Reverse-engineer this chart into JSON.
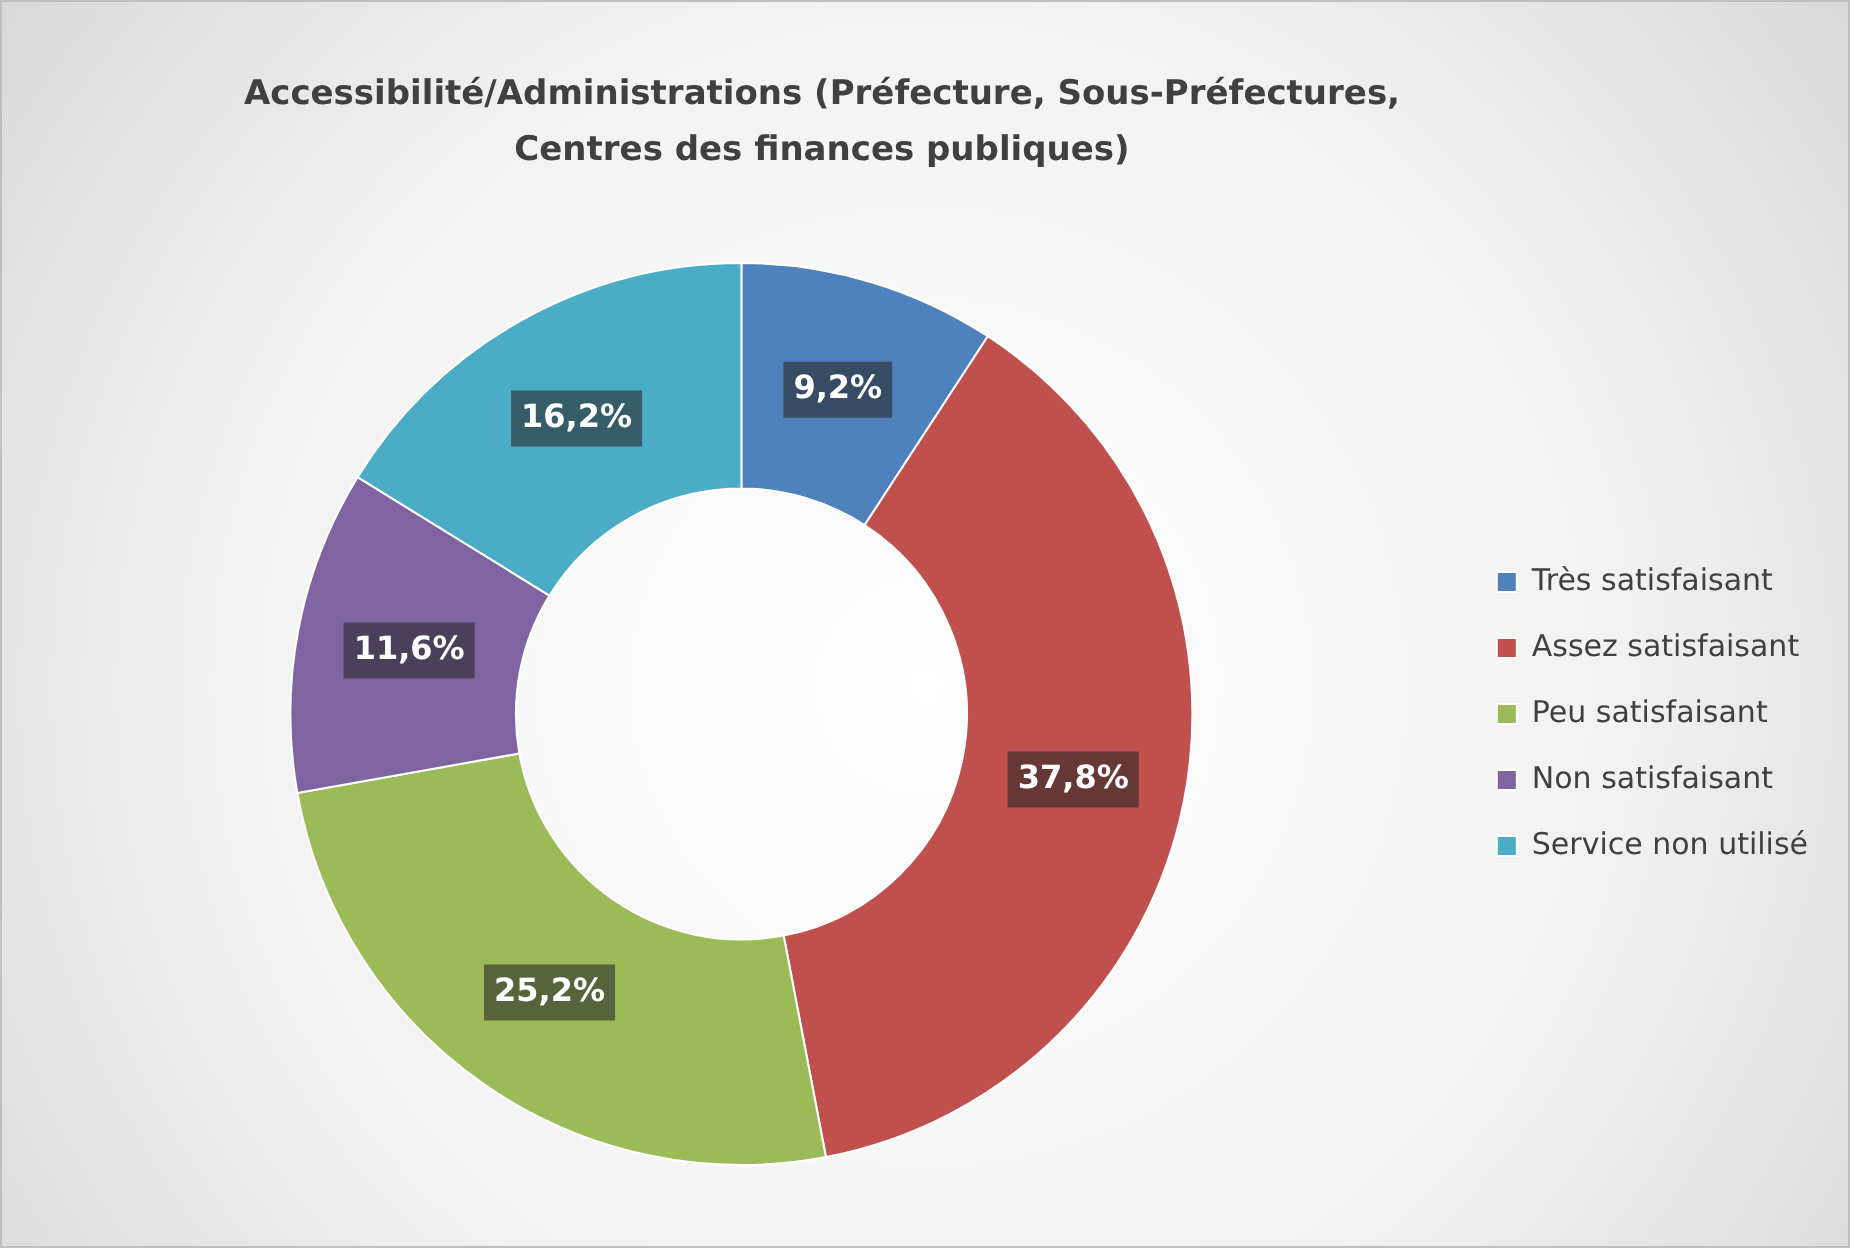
{
  "chart_data": {
    "type": "donut",
    "title": "Accessibilité/Administrations (Préfecture, Sous-Préfectures, Centres des finances publiques)",
    "categories": [
      "Très satisfaisant",
      "Assez satisfaisant",
      "Peu satisfaisant",
      "Non satisfaisant",
      "Service non utilisé"
    ],
    "values": [
      9.2,
      37.8,
      25.2,
      11.6,
      16.2
    ],
    "colors": [
      "#4f81bd",
      "#c0504d",
      "#9bbb59",
      "#8064a2",
      "#4bacc6"
    ],
    "value_labels": [
      "9,2%",
      "37,8%",
      "25,2%",
      "11,6%",
      "16,2%"
    ],
    "legend": "right"
  }
}
